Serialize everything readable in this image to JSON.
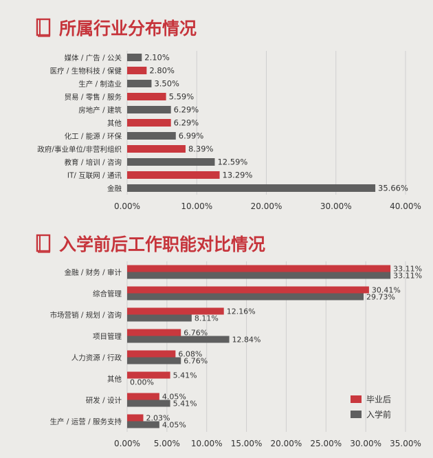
{
  "titles": {
    "industry": "所属行业分布情况",
    "function": "入学前后工作职能对比情况"
  },
  "colors": {
    "red": "#c9383e",
    "gray": "#5f5f5f",
    "title": "#c6343b",
    "grid": "#cfcfcf"
  },
  "chart_data": [
    {
      "type": "bar",
      "orientation": "horizontal",
      "title": "所属行业分布情况",
      "categories": [
        "媒体 / 广告 / 公关",
        "医疗 / 生物科技 / 保健",
        "生产 / 制造业",
        "贸易 / 零售 / 服务",
        "房地产 / 建筑",
        "其他",
        "化工 / 能源 / 环保",
        "政府/事业单位/非营利组织",
        "教育 / 培训 / 咨询",
        "IT/ 互联网 / 通讯",
        "金融"
      ],
      "values": [
        2.1,
        2.8,
        3.5,
        5.59,
        6.29,
        6.29,
        6.99,
        8.39,
        12.59,
        13.29,
        35.66
      ],
      "value_labels": [
        "2.10%",
        "2.80%",
        "3.50%",
        "5.59%",
        "6.29%",
        "6.29%",
        "6.99%",
        "8.39%",
        "12.59%",
        "13.29%",
        "35.66%"
      ],
      "bar_colors": [
        "gray",
        "red",
        "gray",
        "red",
        "gray",
        "red",
        "gray",
        "red",
        "gray",
        "red",
        "gray"
      ],
      "xlim": [
        0,
        40
      ],
      "xticks": [
        "0.00%",
        "10.00%",
        "20.00%",
        "30.00%",
        "40.00%"
      ],
      "grid": true
    },
    {
      "type": "bar",
      "orientation": "horizontal",
      "title": "入学前后工作职能对比情况",
      "categories": [
        "金融 / 财务 / 审计",
        "综合管理",
        "市场营销 / 规划 / 咨询",
        "项目管理",
        "人力资源 / 行政",
        "其他",
        "研发 / 设计",
        "生产 / 运营 / 服务支持"
      ],
      "series": [
        {
          "name": "毕业后",
          "color": "red",
          "values": [
            33.11,
            30.41,
            12.16,
            6.76,
            6.08,
            5.41,
            4.05,
            2.03
          ],
          "labels": [
            "33.11%",
            "30.41%",
            "12.16%",
            "6.76%",
            "6.08%",
            "5.41%",
            "4.05%",
            "2.03%"
          ]
        },
        {
          "name": "入学前",
          "color": "gray",
          "values": [
            33.11,
            29.73,
            8.11,
            12.84,
            6.76,
            0.0,
            5.41,
            4.05
          ],
          "labels": [
            "33.11%",
            "29.73%",
            "8.11%",
            "12.84%",
            "6.76%",
            "0.00%",
            "5.41%",
            "4.05%"
          ]
        }
      ],
      "xlim": [
        0,
        35
      ],
      "xticks": [
        "0.00%",
        "5.00%",
        "10.00%",
        "15.00%",
        "20.00%",
        "25.00%",
        "30.00%",
        "35.00%"
      ],
      "legend": "bottom-right",
      "grid": true
    }
  ]
}
